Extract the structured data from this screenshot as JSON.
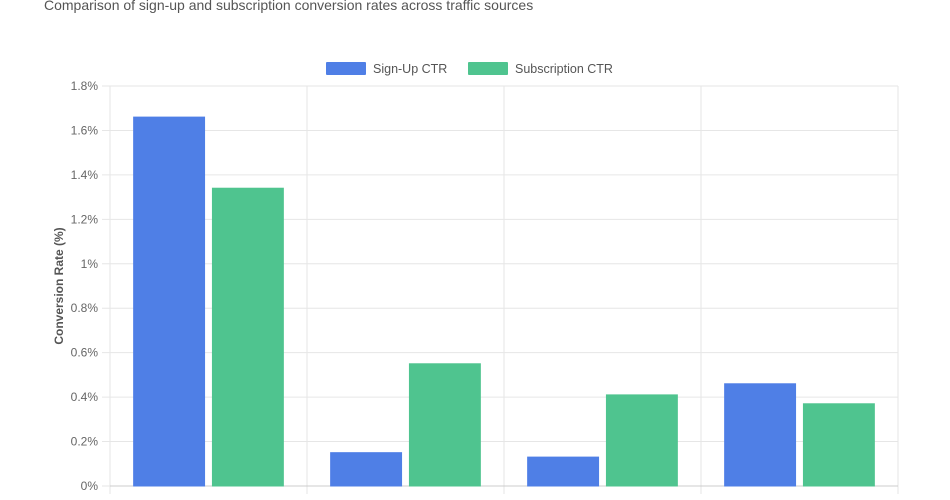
{
  "subtitle": "Comparison of sign-up and subscription conversion rates across traffic sources",
  "chart_data": {
    "type": "bar",
    "categories": [
      "",
      "",
      "",
      ""
    ],
    "series": [
      {
        "name": "Sign-Up CTR",
        "values": [
          1.66,
          0.15,
          0.13,
          0.46
        ],
        "color": "#4f7fe6"
      },
      {
        "name": "Subscription CTR",
        "values": [
          1.34,
          0.55,
          0.41,
          0.37
        ],
        "color": "#4fc48f"
      }
    ],
    "ylabel": "Conversion Rate (%)",
    "ylim": [
      0,
      1.8
    ],
    "yticks": [
      {
        "value": 0,
        "label": "0%"
      },
      {
        "value": 0.2,
        "label": "0.2%"
      },
      {
        "value": 0.4,
        "label": "0.4%"
      },
      {
        "value": 0.6,
        "label": "0.6%"
      },
      {
        "value": 0.8,
        "label": "0.8%"
      },
      {
        "value": 1.0,
        "label": "1%"
      },
      {
        "value": 1.2,
        "label": "1.2%"
      },
      {
        "value": 1.4,
        "label": "1.4%"
      },
      {
        "value": 1.6,
        "label": "1.6%"
      },
      {
        "value": 1.8,
        "label": "1.8%"
      }
    ],
    "grid": true,
    "legend_position": "top-center"
  }
}
